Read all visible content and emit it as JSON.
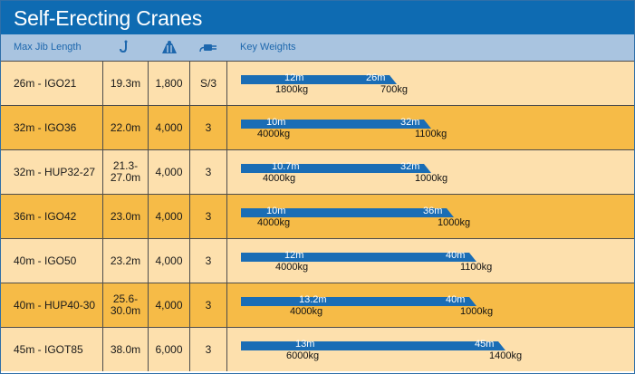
{
  "title": "Self-Erecting Cranes",
  "header": {
    "max_jib_length": "Max Jib Length",
    "key_weights": "Key Weights",
    "icons": [
      "hook-height-icon",
      "weight-icon",
      "power-plug-icon"
    ]
  },
  "colors": {
    "title_bar": "#0e6bb2",
    "header_bar": "#a9c4e0",
    "row_light": "#fde0ad",
    "row_dark": "#f6bb47",
    "bar": "#1a6db5"
  },
  "rows": [
    {
      "name": "26m - IGO21",
      "height": "19.3m",
      "weight": "1,800",
      "power": "S/3",
      "near_dist": "12m",
      "far_dist": "26m",
      "near_load": "1800kg",
      "far_load": "700kg"
    },
    {
      "name": "32m - IGO36",
      "height": "22.0m",
      "weight": "4,000",
      "power": "3",
      "near_dist": "10m",
      "far_dist": "32m",
      "near_load": "4000kg",
      "far_load": "1100kg"
    },
    {
      "name": "32m - HUP32-27",
      "height": "21.3-\n27.0m",
      "weight": "4,000",
      "power": "3",
      "near_dist": "10.7m",
      "far_dist": "32m",
      "near_load": "4000kg",
      "far_load": "1000kg"
    },
    {
      "name": "36m - IGO42",
      "height": "23.0m",
      "weight": "4,000",
      "power": "3",
      "near_dist": "10m",
      "far_dist": "36m",
      "near_load": "4000kg",
      "far_load": "1000kg"
    },
    {
      "name": "40m - IGO50",
      "height": "23.2m",
      "weight": "4,000",
      "power": "3",
      "near_dist": "12m",
      "far_dist": "40m",
      "near_load": "4000kg",
      "far_load": "1100kg"
    },
    {
      "name": "40m - HUP40-30",
      "height": "25.6-\n30.0m",
      "weight": "4,000",
      "power": "3",
      "near_dist": "13.2m",
      "far_dist": "40m",
      "near_load": "4000kg",
      "far_load": "1000kg"
    },
    {
      "name": "45m - IGOT85",
      "height": "38.0m",
      "weight": "6,000",
      "power": "3",
      "near_dist": "13m",
      "far_dist": "45m",
      "near_load": "6000kg",
      "far_load": "1400kg"
    }
  ]
}
